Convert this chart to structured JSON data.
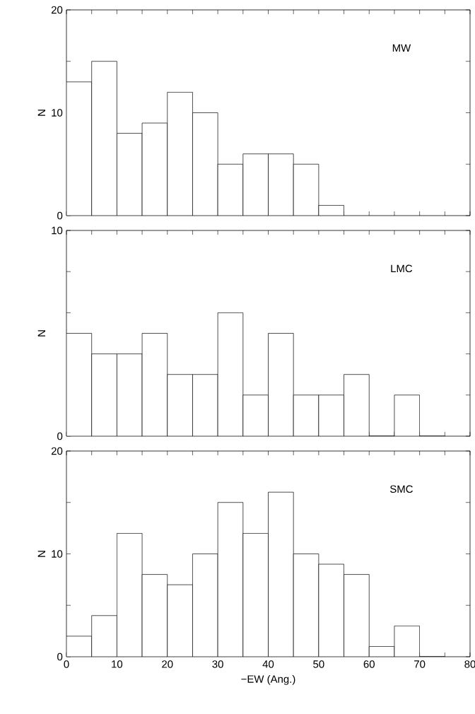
{
  "chart_data": [
    {
      "type": "histogram",
      "ylabel": "N",
      "annotations": [
        "MW"
      ],
      "tick_labels": "y",
      "bins": [
        0,
        5,
        10,
        15,
        20,
        25,
        30,
        35,
        40,
        45,
        50,
        55
      ],
      "values": [
        13,
        15,
        8,
        9,
        12,
        10,
        5,
        6,
        6,
        5,
        1
      ],
      "xlim": [
        0,
        80
      ],
      "ylim": [
        0,
        20
      ],
      "xticks": [
        0,
        5,
        10,
        15,
        20,
        25,
        30,
        35,
        40,
        45,
        50,
        55,
        60,
        65,
        70,
        75,
        80
      ],
      "yticks": [
        0,
        {
          "value": 5,
          "label": null
        },
        10,
        {
          "value": 15,
          "label": null
        },
        20
      ]
    },
    {
      "type": "histogram",
      "ylabel": "N",
      "annotations": [
        "LMC"
      ],
      "tick_labels": "y",
      "bins": [
        0,
        5,
        10,
        15,
        20,
        25,
        30,
        35,
        40,
        45,
        50,
        55,
        60,
        65,
        70,
        75
      ],
      "values": [
        5,
        4,
        4,
        5,
        3,
        3,
        6,
        2,
        5,
        2,
        2,
        3,
        0,
        2,
        0
      ],
      "xlim": [
        0,
        80
      ],
      "ylim": [
        0,
        10
      ],
      "xticks": [
        0,
        5,
        10,
        15,
        20,
        25,
        30,
        35,
        40,
        45,
        50,
        55,
        60,
        65,
        70,
        75,
        80
      ],
      "yticks": [
        0,
        {
          "value": 2,
          "label": null
        },
        {
          "value": 4,
          "label": null
        },
        {
          "value": 6,
          "label": null
        },
        {
          "value": 8,
          "label": null
        },
        10
      ]
    },
    {
      "type": "histogram",
      "ylabel": "N",
      "xlabel": "−EW (Ang.)",
      "annotations": [
        "SMC"
      ],
      "bins": [
        0,
        5,
        10,
        15,
        20,
        25,
        30,
        35,
        40,
        45,
        50,
        55,
        60,
        65,
        70,
        75
      ],
      "values": [
        2,
        4,
        12,
        8,
        7,
        10,
        15,
        12,
        16,
        10,
        9,
        8,
        1,
        3,
        0
      ],
      "xlim": [
        0,
        80
      ],
      "ylim": [
        0,
        20
      ],
      "xticks": [
        0,
        {
          "value": 5,
          "label": null
        },
        10,
        {
          "value": 15,
          "label": null
        },
        20,
        {
          "value": 25,
          "label": null
        },
        30,
        {
          "value": 35,
          "label": null
        },
        40,
        {
          "value": 45,
          "label": null
        },
        50,
        {
          "value": 55,
          "label": null
        },
        60,
        {
          "value": 65,
          "label": null
        },
        70,
        {
          "value": 75,
          "label": null
        },
        80
      ],
      "yticks": [
        0,
        {
          "value": 5,
          "label": null
        },
        10,
        {
          "value": 15,
          "label": null
        },
        20
      ]
    }
  ]
}
